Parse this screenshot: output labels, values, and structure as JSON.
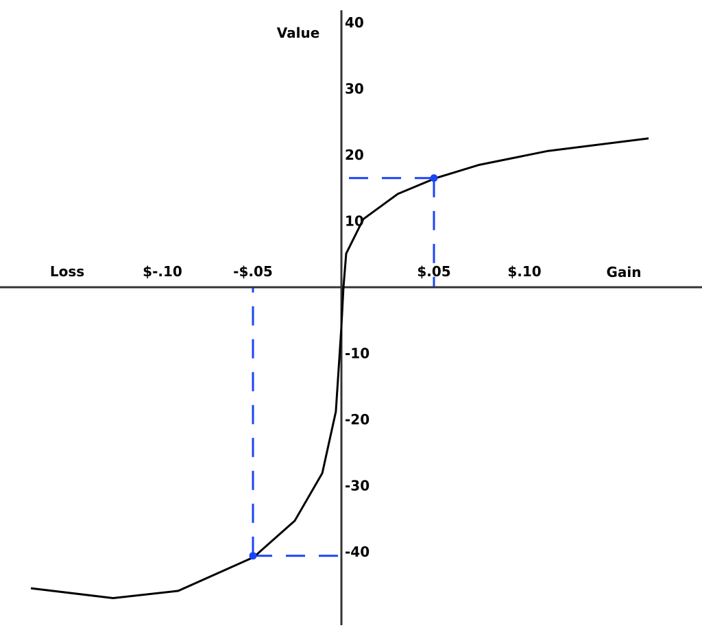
{
  "chart_data": {
    "type": "line",
    "title": "",
    "xlabel_left": "Loss",
    "xlabel_right": "Gain",
    "ylabel": "Value",
    "xlim": [
      -0.19,
      0.2
    ],
    "ylim": [
      -51,
      42
    ],
    "x_ticks": [
      {
        "value": -0.1,
        "label": "$-.10"
      },
      {
        "value": -0.05,
        "label": "-$.05"
      },
      {
        "value": 0.05,
        "label": "$.05"
      },
      {
        "value": 0.1,
        "label": "$.10"
      }
    ],
    "y_ticks": [
      {
        "value": 40,
        "label": "40"
      },
      {
        "value": 30,
        "label": "30"
      },
      {
        "value": 20,
        "label": "20"
      },
      {
        "value": 10,
        "label": "10"
      },
      {
        "value": -10,
        "label": "-10"
      },
      {
        "value": -20,
        "label": "-20"
      },
      {
        "value": -30,
        "label": "-30"
      },
      {
        "value": -40,
        "label": "-40"
      }
    ],
    "grid": false,
    "series": [
      {
        "color": "#000000",
        "points": [
          [
            -0.1727,
            -45.5
          ],
          [
            -0.1273,
            -47.0
          ],
          [
            -0.0913,
            -45.9
          ],
          [
            -0.0496,
            -40.8
          ],
          [
            -0.0269,
            -35.3
          ],
          [
            -0.0117,
            -28.1
          ],
          [
            -0.0042,
            -18.8
          ],
          [
            -0.0012,
            -6.3
          ],
          [
            0,
            0
          ],
          [
            0.0015,
            5.1
          ],
          [
            0.011,
            10.3
          ],
          [
            0.03,
            14.1
          ],
          [
            0.051,
            16.5
          ],
          [
            0.075,
            18.5
          ],
          [
            0.113,
            20.6
          ],
          [
            0.1686,
            22.5
          ]
        ]
      }
    ],
    "highlighted_points": [
      {
        "x": 0.05,
        "y": 16.5,
        "color": "#1a44f5"
      },
      {
        "x": -0.05,
        "y": -40.6,
        "color": "#1a44f5"
      }
    ]
  }
}
